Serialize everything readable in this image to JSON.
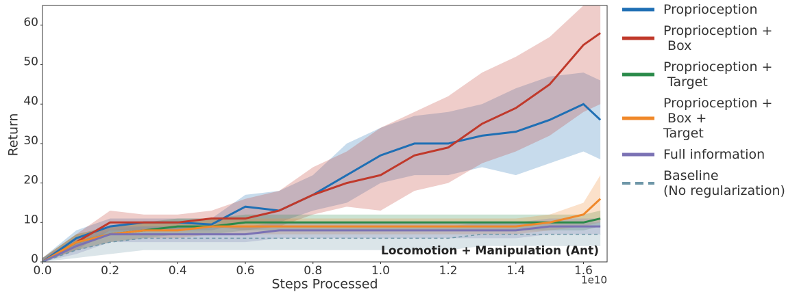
{
  "chart_data": {
    "type": "line",
    "annotation": "Locomotion + Manipulation (Ant)",
    "x_label": "Steps Processed",
    "y_label": "Return",
    "x_offset_label": "1e10",
    "x": [
      0,
      0.1,
      0.2,
      0.3,
      0.4,
      0.5,
      0.6,
      0.7,
      0.8,
      0.9,
      1.0,
      1.1,
      1.2,
      1.3,
      1.4,
      1.5,
      1.6,
      1.65
    ],
    "xlim": [
      0,
      1.67
    ],
    "ylim": [
      0,
      65
    ],
    "xticks": [
      {
        "value": 0,
        "label": "0.0"
      },
      0.2,
      0.4,
      0.6,
      0.8,
      {
        "value": 1,
        "label": "1.0"
      },
      1.2,
      1.4,
      1.6
    ],
    "yticks": [
      0,
      10,
      20,
      30,
      40,
      50,
      60
    ],
    "series": [
      {
        "name": "Proprioception",
        "color": "#1f6fb4",
        "values": [
          0,
          6,
          9,
          10,
          10,
          9.5,
          14,
          13,
          17,
          22,
          27,
          30,
          30,
          32,
          33,
          36,
          40,
          36
        ],
        "lower": [
          0,
          4,
          7,
          8,
          8,
          8,
          10,
          10,
          13,
          15,
          20,
          22,
          22,
          24,
          22,
          25,
          28,
          26
        ],
        "upper": [
          1,
          8,
          11,
          11,
          11,
          11,
          17,
          18,
          22,
          30,
          34,
          37,
          38,
          40,
          44,
          47,
          48,
          46
        ]
      },
      {
        "name": "Proprioception +\n Box",
        "color": "#c0392b",
        "values": [
          0,
          5,
          10,
          10,
          10,
          11,
          11,
          13,
          17,
          20,
          22,
          27,
          29,
          35,
          39,
          45,
          55,
          58
        ],
        "lower": [
          0,
          3,
          8,
          8,
          8,
          9,
          8,
          9,
          12,
          14,
          13,
          18,
          20,
          25,
          28,
          32,
          38,
          40
        ],
        "upper": [
          1,
          7,
          13,
          12,
          12,
          13,
          16,
          18,
          24,
          28,
          34,
          38,
          42,
          48,
          52,
          57,
          65,
          65
        ]
      },
      {
        "name": "Proprioception +\n Target",
        "color": "#2a8a4a",
        "values": [
          0,
          5,
          7,
          8,
          9,
          9,
          10,
          10,
          10,
          10,
          10,
          10,
          10,
          10,
          10,
          10,
          10,
          11
        ],
        "lower": [
          0,
          3,
          5,
          6,
          7,
          7,
          8,
          8,
          8,
          8,
          8,
          8,
          8,
          8,
          8,
          8,
          8,
          9
        ],
        "upper": [
          1,
          7,
          9,
          10,
          11,
          11,
          12,
          12,
          12,
          12,
          12,
          12,
          12,
          12,
          12,
          12,
          12,
          13
        ]
      },
      {
        "name": "Proprioception +\n Box +\nTarget",
        "color": "#f0882a",
        "values": [
          0,
          5,
          7,
          8,
          8,
          9,
          9,
          9,
          9,
          9,
          9,
          9,
          9,
          9,
          9,
          10,
          12,
          16
        ],
        "lower": [
          0,
          3,
          5,
          6,
          6,
          7,
          7,
          7,
          7,
          7,
          7,
          7,
          7,
          7,
          7,
          8,
          9,
          10
        ],
        "upper": [
          1,
          7,
          9,
          10,
          10,
          11,
          11,
          11,
          11,
          11,
          11,
          11,
          11,
          11,
          11,
          12,
          15,
          22
        ]
      },
      {
        "name": "Full information",
        "color": "#7b72b4",
        "values": [
          0,
          4,
          7,
          7,
          7,
          7,
          7,
          8,
          8,
          8,
          8,
          8,
          8,
          8,
          8,
          9,
          9,
          9
        ],
        "lower": [
          0,
          2,
          5,
          5,
          5,
          5,
          5,
          6,
          6,
          6,
          6,
          6,
          6,
          6,
          6,
          7,
          7,
          7
        ],
        "upper": [
          1,
          6,
          9,
          9,
          9,
          9,
          9,
          10,
          10,
          10,
          10,
          10,
          10,
          10,
          10,
          11,
          11,
          11
        ]
      },
      {
        "name": "Baseline\n(No regularization)",
        "color": "#6f97a8",
        "dashed": true,
        "values": [
          0,
          3,
          5,
          6,
          6,
          6,
          6,
          6,
          6,
          6,
          6,
          6,
          6,
          7,
          7,
          7,
          7,
          7
        ],
        "lower": [
          0,
          1,
          2,
          3,
          3,
          3,
          3,
          3,
          3,
          3,
          3,
          3,
          3,
          4,
          4,
          4,
          4,
          4
        ],
        "upper": [
          1,
          5,
          8,
          9,
          9,
          9,
          9,
          9,
          9,
          9,
          9,
          9,
          9,
          10,
          10,
          10,
          10,
          10
        ]
      }
    ]
  }
}
